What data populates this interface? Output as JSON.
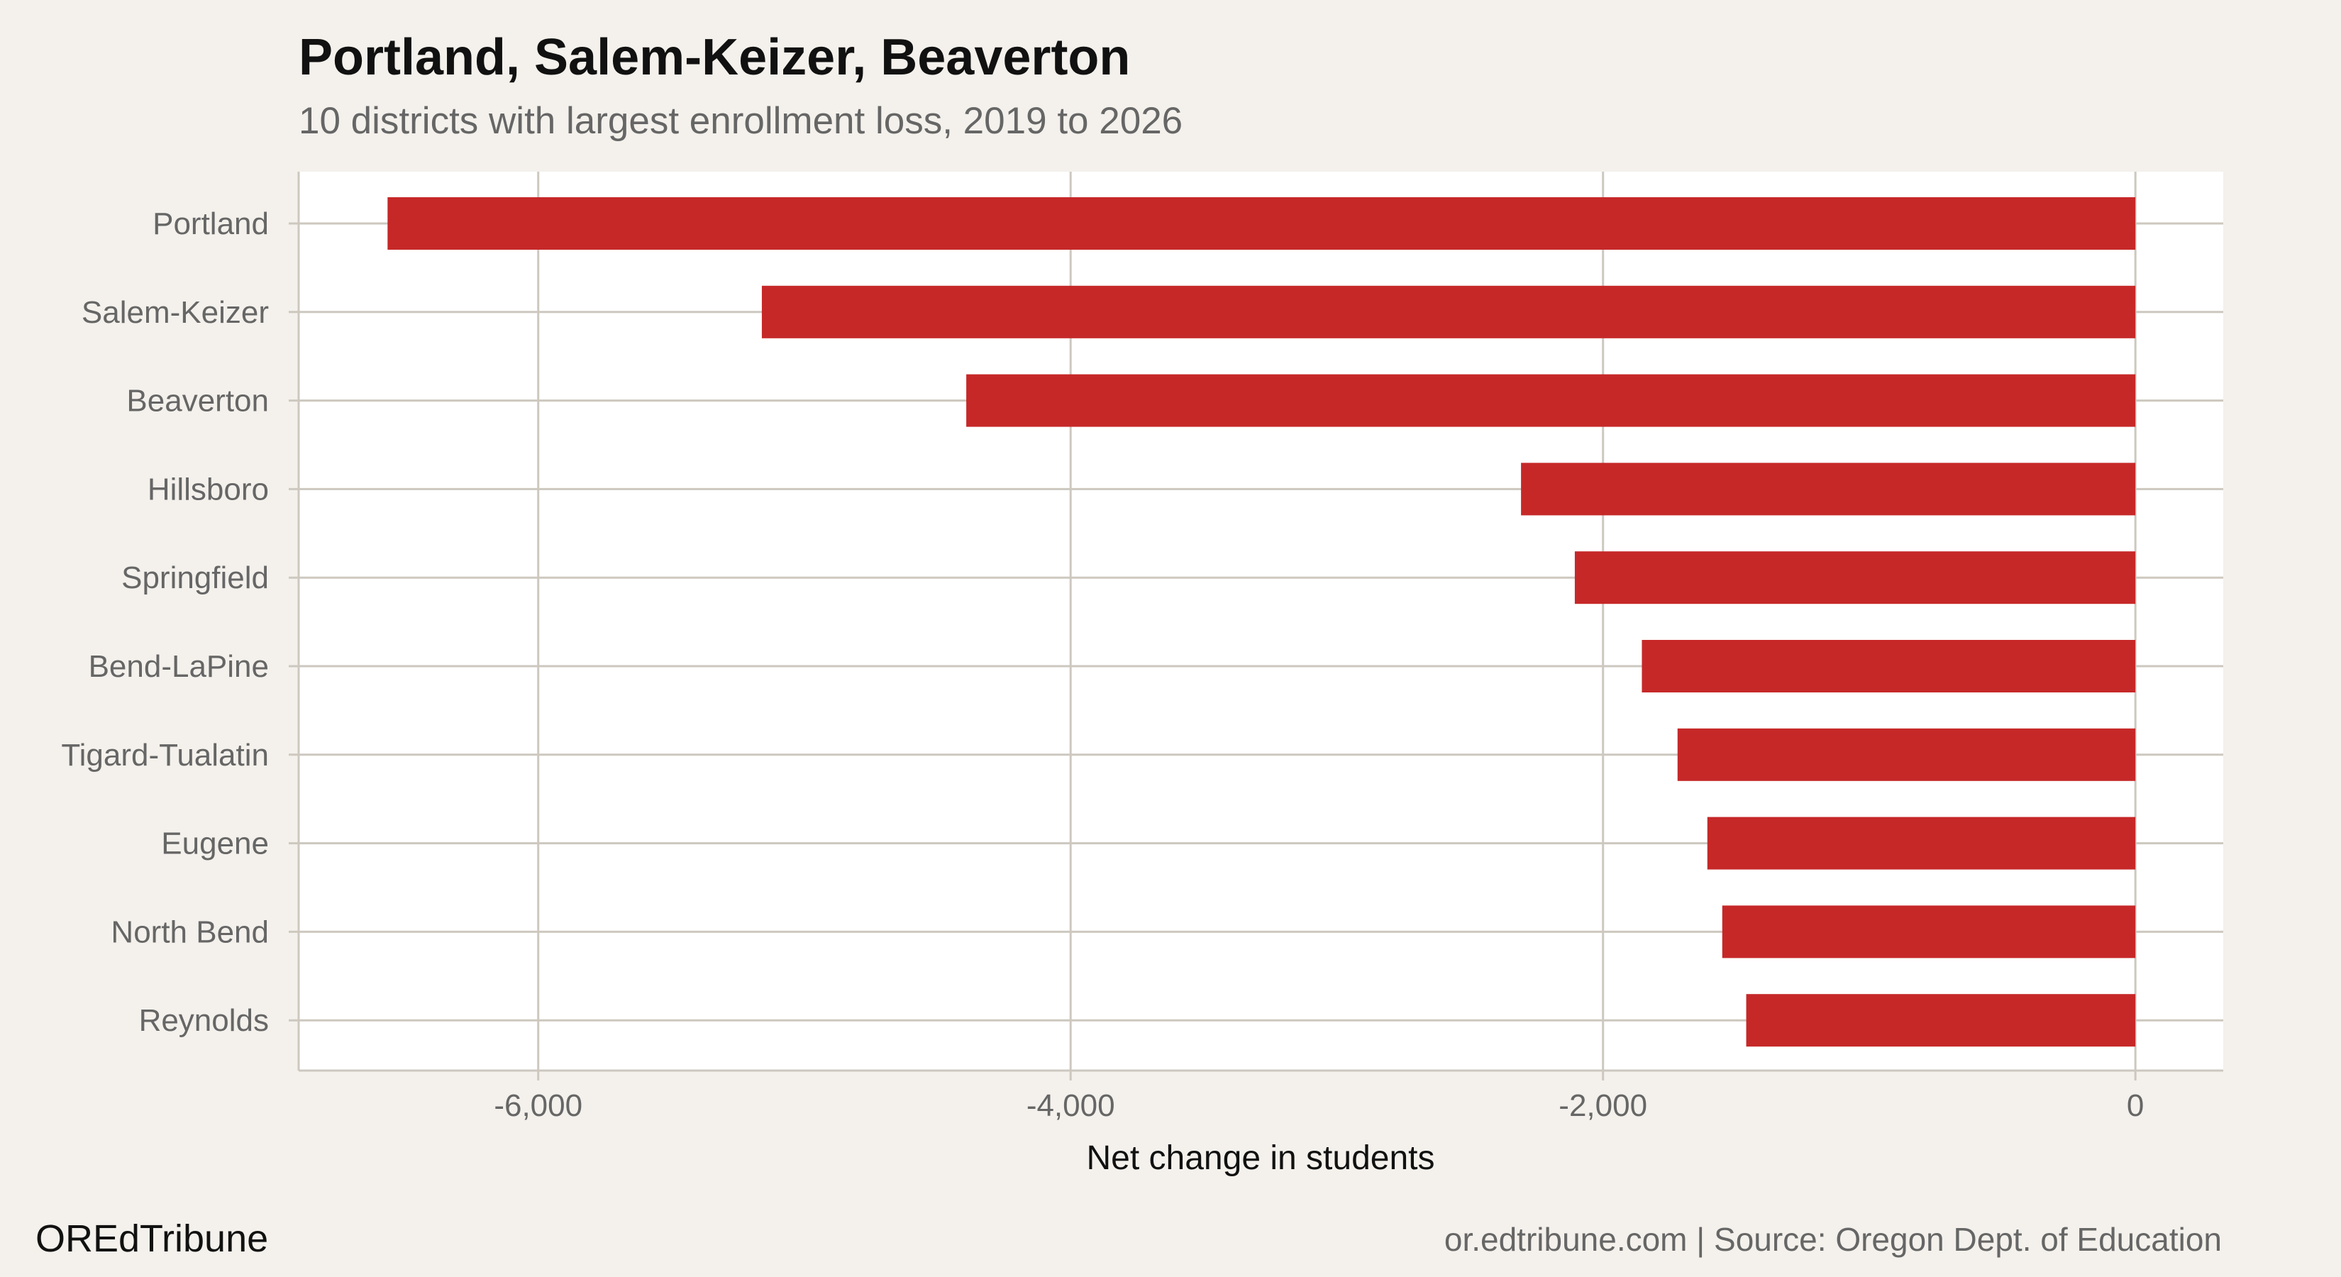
{
  "title": "Portland, Salem-Keizer, Beaverton",
  "subtitle": "10 districts with largest enrollment loss, 2019 to 2026",
  "footer": {
    "brand": "OREdTribune",
    "source": "or.edtribune.com | Source: Oregon Dept. of Education"
  },
  "colors": {
    "bar": "#c62828",
    "background": "#f4f1ec",
    "panel": "#ffffff",
    "grid": "#cdc8bf"
  },
  "chart_data": {
    "type": "bar",
    "orientation": "horizontal",
    "title": "Portland, Salem-Keizer, Beaverton",
    "subtitle": "10 districts with largest enrollment loss, 2019 to 2026",
    "xlabel": "Net change in students",
    "ylabel": "",
    "categories": [
      "Portland",
      "Salem-Keizer",
      "Beaverton",
      "Hillsboro",
      "Springfield",
      "Bend-LaPine",
      "Tigard-Tualatin",
      "Eugene",
      "North Bend",
      "Reynolds"
    ],
    "values": [
      -6566,
      -5160,
      -4392,
      -2308,
      -2106,
      -1854,
      -1720,
      -1608,
      -1552,
      -1462
    ],
    "xlim": [
      -6900,
      330
    ],
    "xticks": [
      -6000,
      -4000,
      -2000,
      0
    ],
    "xtick_labels": [
      "-6,000",
      "-4,000",
      "-2,000",
      "0"
    ],
    "grid": true,
    "legend": "none"
  }
}
